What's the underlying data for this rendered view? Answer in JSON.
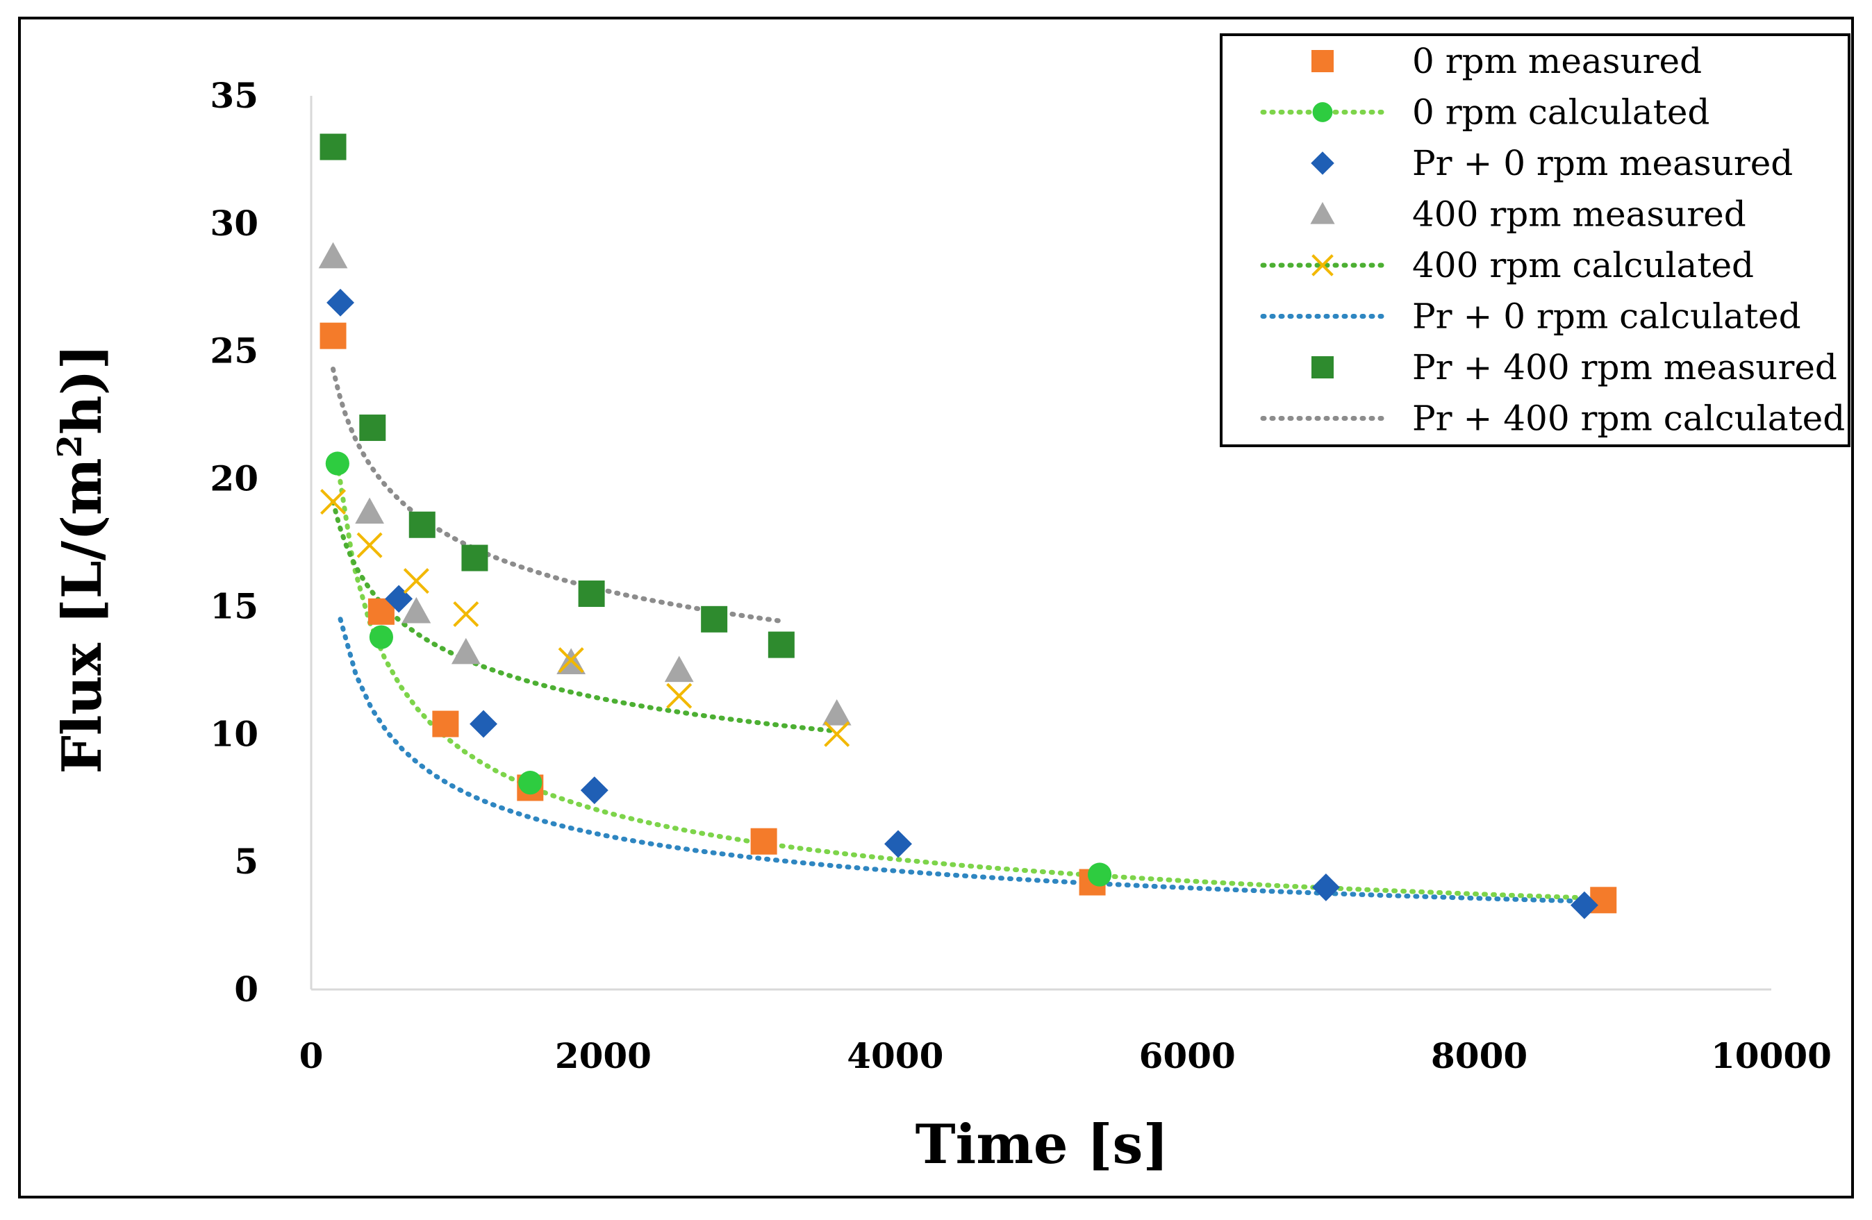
{
  "chart_data": {
    "type": "scatter",
    "title": "",
    "xlabel": "Time [s]",
    "ylabel_prefix": "Flux [L/(m",
    "ylabel_sup": "2",
    "ylabel_suffix": "h)]",
    "xlim": [
      0,
      10000
    ],
    "ylim": [
      0,
      35
    ],
    "x_ticks": [
      0,
      2000,
      4000,
      6000,
      8000,
      10000
    ],
    "y_ticks": [
      0,
      5,
      10,
      15,
      20,
      25,
      30,
      35
    ],
    "grid": false,
    "legend_position": "top-right",
    "series": [
      {
        "name": "0 rpm measured",
        "kind": "marker",
        "marker": "square",
        "color": "#F47B2A",
        "x": [
          150,
          480,
          920,
          1500,
          3100,
          5350,
          8850
        ],
        "y": [
          25.6,
          14.8,
          10.4,
          7.9,
          5.8,
          4.2,
          3.5
        ]
      },
      {
        "name": "0 rpm calculated",
        "kind": "dotted-line-marker",
        "marker": "circle",
        "color": "#2ECC40",
        "line_color": "#7DD44A",
        "x": [
          180,
          480,
          1500,
          5400
        ],
        "y": [
          20.6,
          13.8,
          8.1,
          4.5
        ],
        "curve": {
          "a": 20.6,
          "t0": 180,
          "n": 0.45,
          "x_start": 180,
          "x_end": 8850
        }
      },
      {
        "name": "Pr + 0 rpm measured",
        "kind": "marker",
        "marker": "diamond",
        "color": "#1F5FB5",
        "x": [
          200,
          600,
          1180,
          1940,
          4020,
          6950,
          8720
        ],
        "y": [
          26.9,
          15.3,
          10.4,
          7.8,
          5.7,
          4.0,
          3.3
        ]
      },
      {
        "name": "400 rpm measured",
        "kind": "marker",
        "marker": "triangle",
        "color": "#A6A6A6",
        "x": [
          150,
          400,
          720,
          1060,
          1780,
          2520,
          3600
        ],
        "y": [
          28.7,
          18.7,
          14.8,
          13.2,
          12.8,
          12.5,
          10.8
        ]
      },
      {
        "name": "400 rpm calculated",
        "kind": "dotted-line-marker",
        "marker": "x",
        "color": "#F2B800",
        "line_color": "#4CAF32",
        "x": [
          150,
          400,
          720,
          1060,
          1780,
          2520,
          3600
        ],
        "y": [
          19.1,
          17.4,
          16.0,
          14.7,
          12.9,
          11.5,
          10.0
        ],
        "curve": {
          "a": 19.1,
          "t0": 150,
          "n": 0.2,
          "x_start": 150,
          "x_end": 3600
        }
      },
      {
        "name": "Pr + 0 rpm calculated",
        "kind": "dotted-line",
        "color": "#2E86C1",
        "curve": {
          "a": 14.5,
          "t0": 200,
          "n": 0.38,
          "x_start": 200,
          "x_end": 8720
        }
      },
      {
        "name": "Pr + 400 rpm measured",
        "kind": "marker",
        "marker": "square",
        "color": "#2E8B2E",
        "x": [
          150,
          420,
          760,
          1120,
          1920,
          2760,
          3220
        ],
        "y": [
          33.0,
          22.0,
          18.2,
          16.9,
          15.5,
          14.5,
          13.5
        ]
      },
      {
        "name": "Pr + 400 rpm calculated",
        "kind": "dotted-line",
        "color": "#8C8C8C",
        "curve": {
          "a": 24.3,
          "t0": 150,
          "n": 0.17,
          "x_start": 150,
          "x_end": 3220
        }
      }
    ]
  },
  "page": {
    "frame_color": "#000000",
    "axis_color": "#D9D9D9"
  }
}
